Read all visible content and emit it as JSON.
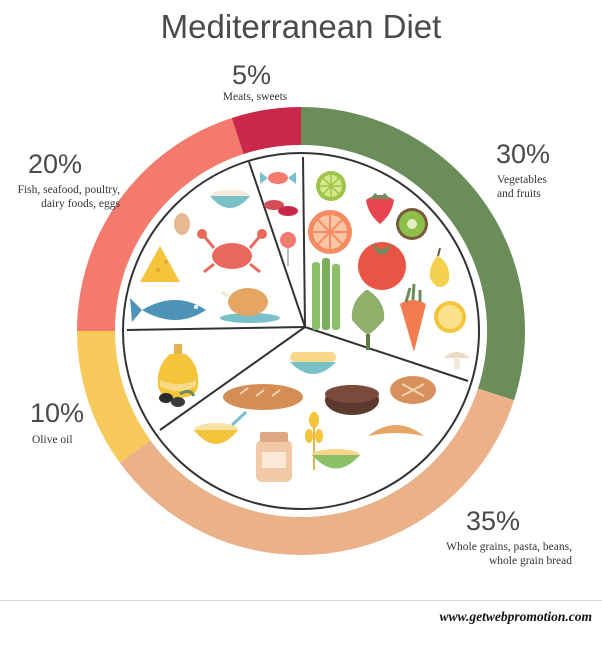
{
  "chart_data": {
    "type": "pie",
    "title": "Mediterranean Diet",
    "categories": [
      "Vegetables and fruits",
      "Whole grains, pasta, beans, whole grain bread",
      "Olive oil",
      "Fish, seafood, poultry, dairy foods, eggs",
      "Meats, sweets"
    ],
    "values": [
      30,
      35,
      10,
      20,
      5
    ],
    "value_labels": [
      "30%",
      "35%",
      "10%",
      "20%",
      "5%"
    ],
    "colors": [
      "#6b8d59",
      "#ebb189",
      "#f7c95b",
      "#f47a6d",
      "#c9284b"
    ],
    "captions": {
      "veg": [
        "Vegetables",
        "and fruits"
      ],
      "grains": [
        "Whole grains, pasta, beans,",
        "whole grain bread"
      ],
      "oil": [
        "Olive oil"
      ],
      "fish": [
        "Fish, seafood, poultry,",
        "dairy foods, eggs"
      ],
      "meat": [
        "Meats, sweets"
      ]
    }
  },
  "footer": {
    "website": "www.getwebpromotion.com"
  },
  "icons": [
    "lime-icon",
    "strawberry-icon",
    "grapefruit-icon",
    "kiwi-icon",
    "tomato-icon",
    "pear-icon",
    "asparagus-icon",
    "artichoke-icon",
    "carrot-icon",
    "lemon-icon",
    "mushroom-icon",
    "pasta-bowl-icon",
    "bread-loaf-icon",
    "chocolate-cake-icon",
    "round-bread-icon",
    "croissant-icon",
    "porridge-bowl-icon",
    "jar-icon",
    "wheat-icon",
    "grain-bowl-icon",
    "olive-oil-bottle-icon",
    "olives-icon",
    "fish-icon",
    "cheese-icon",
    "crab-icon",
    "chicken-icon",
    "egg-icon",
    "yogurt-bowl-icon",
    "candy-icon",
    "sausage-slices-icon",
    "lollipop-icon"
  ]
}
